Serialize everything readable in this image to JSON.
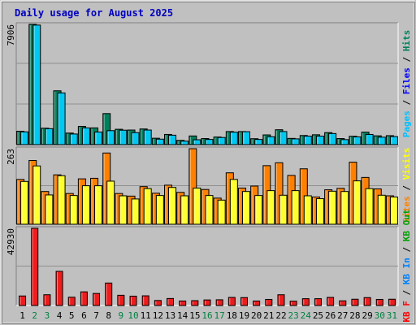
{
  "chart_data": {
    "type": "bar",
    "title": "Daily usage for August 2025",
    "x": [
      1,
      2,
      3,
      4,
      5,
      6,
      7,
      8,
      9,
      10,
      11,
      12,
      13,
      14,
      15,
      16,
      17,
      18,
      19,
      20,
      21,
      22,
      23,
      24,
      25,
      26,
      27,
      28,
      29,
      30,
      31
    ],
    "weekend_days": [
      2,
      3,
      9,
      10,
      16,
      17,
      23,
      24,
      30,
      31
    ],
    "panels": [
      {
        "id": "pages-files-hits",
        "y_max_label": "7906",
        "ymax": 7906,
        "legend": [
          {
            "label": "Hits",
            "color": "#00805c"
          },
          {
            "label": "Files",
            "color": "#0000ff"
          },
          {
            "label": "Pages",
            "color": "#00c0ff"
          }
        ],
        "series": [
          {
            "name": "Hits",
            "color": "#00805c",
            "values": [
              880,
              7906,
              1080,
              3540,
              760,
              1200,
              1100,
              2040,
              1010,
              960,
              1030,
              420,
              670,
              280,
              570,
              400,
              500,
              860,
              860,
              390,
              640,
              980,
              410,
              600,
              650,
              790,
              400,
              550,
              820,
              580,
              590
            ]
          },
          {
            "name": "Files",
            "color": "#00c8f0",
            "values": [
              840,
              7860,
              1050,
              3400,
              700,
              1100,
              830,
              920,
              950,
              790,
              960,
              360,
              620,
              230,
              320,
              340,
              470,
              820,
              850,
              340,
              520,
              860,
              380,
              560,
              560,
              730,
              330,
              510,
              670,
              490,
              530
            ]
          }
        ]
      },
      {
        "id": "visits-sites",
        "y_max_label": "263",
        "ymax": 263,
        "legend": [
          {
            "label": "Visits",
            "color": "#ffff00"
          },
          {
            "label": "Sites",
            "color": "#ff8000"
          }
        ],
        "series": [
          {
            "name": "Sites",
            "color": "#ff8000",
            "values": [
              156,
              222,
              114,
              172,
              107,
              158,
              160,
              248,
              107,
              98,
              131,
              108,
              136,
              111,
              263,
              121,
              91,
              179,
              126,
              133,
              204,
              214,
              170,
              193,
              95,
              120,
              125,
              216,
              163,
              123,
              99
            ]
          },
          {
            "name": "Visits",
            "color": "#ffff30",
            "values": [
              149,
              203,
              102,
              169,
              100,
              134,
              134,
              150,
              99,
              88,
              124,
              100,
              128,
              99,
              126,
              100,
              84,
              156,
              114,
              100,
              117,
              101,
              117,
              99,
              89,
              115,
              114,
              151,
              124,
              101,
              95
            ]
          }
        ]
      },
      {
        "id": "kbf-kbin-kbout",
        "y_max_label": "42930",
        "ymax": 42930,
        "legend": [
          {
            "label": "KB Out",
            "color": "#00a000"
          },
          {
            "label": "KB In",
            "color": "#0080ff"
          },
          {
            "label": "KB F",
            "color": "#ff0000"
          }
        ],
        "series": [
          {
            "name": "KB F",
            "color": "#ee1c1c",
            "values": [
              5300,
              42930,
              6000,
              19000,
              4600,
              7600,
              6700,
              12500,
              5700,
              5200,
              5400,
              2800,
              3900,
              2500,
              2700,
              3100,
              3200,
              4500,
              4400,
              2500,
              3400,
              6000,
              2400,
              3800,
              3800,
              4500,
              2600,
              3500,
              4400,
              3400,
              3500
            ]
          }
        ]
      }
    ]
  }
}
